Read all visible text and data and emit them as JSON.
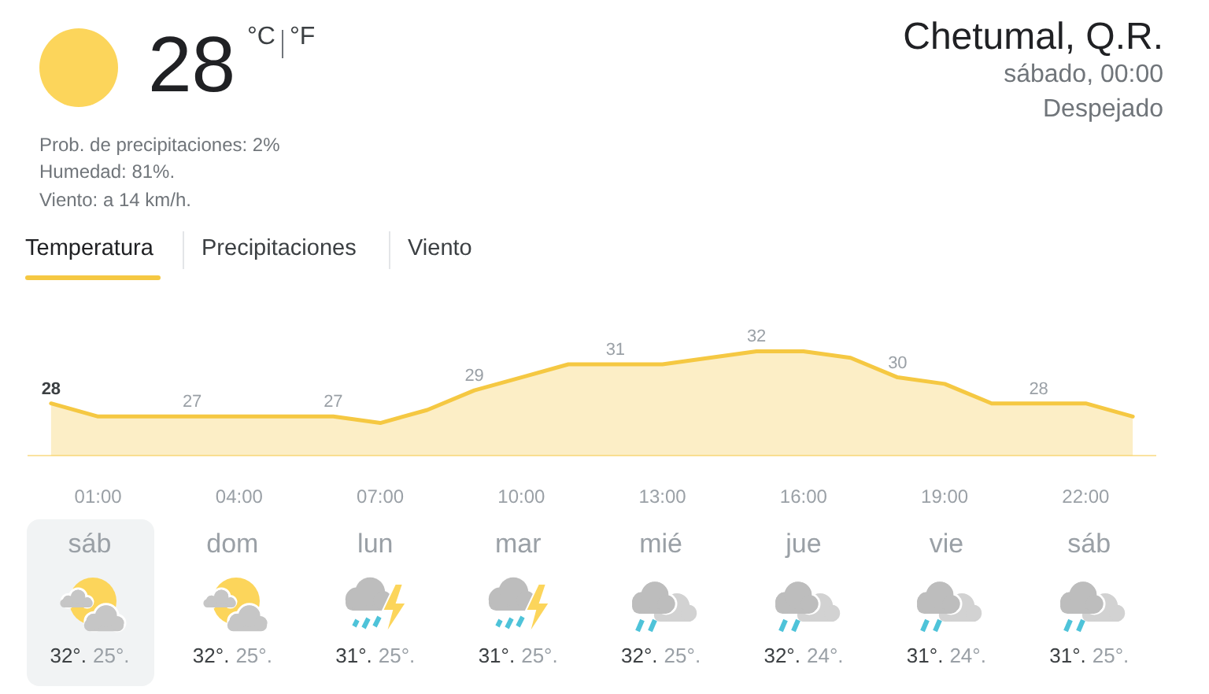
{
  "chart_data": {
    "type": "area",
    "title": "Chetumal, Q.R.",
    "subtitle": "sábado, 00:00",
    "x": [
      0,
      1,
      2,
      3,
      4,
      5,
      6,
      7,
      8,
      9,
      10,
      11,
      12,
      13,
      14,
      15,
      16,
      17,
      18,
      19,
      20,
      21,
      22,
      23
    ],
    "values": [
      28,
      27,
      27,
      27,
      27,
      27,
      27,
      26.5,
      27.5,
      29,
      30,
      31,
      31,
      31,
      31.5,
      32,
      32,
      31.5,
      30,
      29.5,
      28,
      28,
      28,
      27
    ],
    "value_labels": [
      "28",
      null,
      null,
      "27",
      null,
      null,
      "27",
      null,
      null,
      "29",
      null,
      null,
      "31",
      null,
      null,
      "32",
      null,
      null,
      "30",
      null,
      null,
      "28",
      null,
      null
    ],
    "color": "#f5c842",
    "xlim": [
      -0.5,
      23.5
    ],
    "xticks": [
      {
        "value": 1,
        "label": "01:00"
      },
      {
        "value": 4,
        "label": "04:00"
      },
      {
        "value": 7,
        "label": "07:00"
      },
      {
        "value": 10,
        "label": "10:00"
      },
      {
        "value": 13,
        "label": "13:00"
      },
      {
        "value": 16,
        "label": "16:00"
      },
      {
        "value": 19,
        "label": "19:00"
      },
      {
        "value": 22,
        "label": "22:00"
      }
    ],
    "tick_labels": "x",
    "annotations": [
      "28",
      "°C",
      "°F",
      "Prob. de precipitaciones: 2%",
      "Humedad: 81%.",
      "Viento: a 14 km/h.",
      "Despejado",
      "Temperatura",
      "Precipitaciones",
      "Viento",
      "sáb",
      "32°.",
      "25°.",
      "dom",
      "32°.",
      "25°.",
      "lun",
      "31°.",
      "25°.",
      "mar",
      "31°.",
      "25°.",
      "mié",
      "32°.",
      "25°.",
      "jue",
      "32°.",
      "24°.",
      "vie",
      "31°.",
      "24°.",
      "sáb",
      "31°.",
      "25°."
    ]
  }
}
